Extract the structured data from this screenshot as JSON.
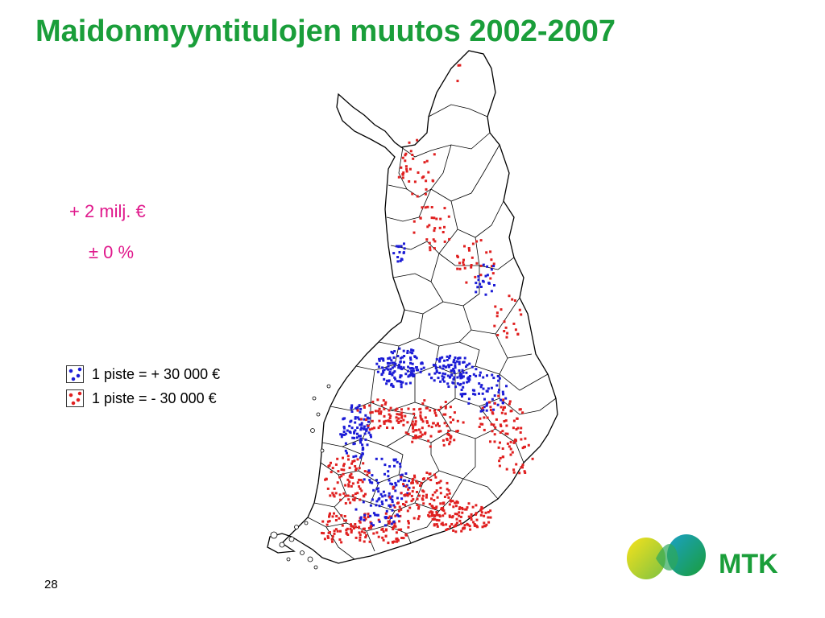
{
  "slide": {
    "title": "Maidonmyyntitulojen muutos 2002-2007",
    "page_number": "28"
  },
  "stats": {
    "line1": "+ 2 milj. €",
    "line2": "± 0 %"
  },
  "legend": {
    "items": [
      {
        "label": "1 piste = + 30 000 €",
        "color": "#1c1cd6"
      },
      {
        "label": "1 piste = - 30 000 €",
        "color": "#e02020"
      }
    ]
  },
  "logo": {
    "text": "MTK",
    "color": "#1a9e3a"
  },
  "colors": {
    "title": "#1a9e3a",
    "stats": "#e0198c",
    "increase": "#1c1cd6",
    "decrease": "#e02020"
  }
}
